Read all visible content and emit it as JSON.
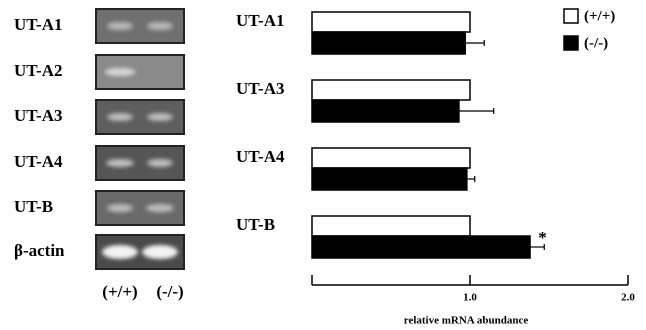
{
  "gel": {
    "rows": [
      "UT-A1",
      "UT-A2",
      "UT-A3",
      "UT-A4",
      "UT-B",
      "β-actin"
    ],
    "lanes": [
      "(+/+)",
      "(-/-)"
    ]
  },
  "chart_data": {
    "type": "bar",
    "horizontal": true,
    "categories": [
      "UT-A1",
      "UT-A3",
      "UT-A4",
      "UT-B"
    ],
    "series": [
      {
        "name": "(+/+)",
        "color": "#ffffff",
        "values": [
          1.0,
          1.0,
          1.0,
          1.0
        ]
      },
      {
        "name": "(-/-)",
        "color": "#000000",
        "values": [
          0.97,
          0.93,
          0.98,
          1.38
        ],
        "errors": [
          0.12,
          0.22,
          0.05,
          0.09
        ]
      }
    ],
    "annotation": "*",
    "xlabel": "relative mRNA abundance",
    "xlim": [
      0,
      2.0
    ],
    "xticks": [
      {
        "value": 1.0,
        "label": "1.0"
      },
      {
        "value": 2.0,
        "label": "2.0"
      }
    ],
    "legend": "top-right"
  }
}
